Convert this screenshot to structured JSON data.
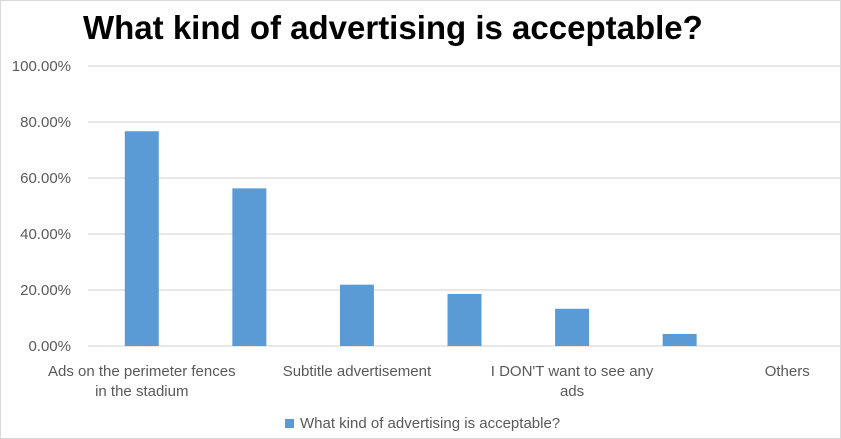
{
  "chart_data": {
    "type": "bar",
    "title": "What kind of advertising is acceptable?",
    "categories": [
      "Ads on the perimeter fences\nin the stadium",
      "",
      "Subtitle advertisement",
      "",
      "I DON'T want to see any ads",
      "",
      "Others"
    ],
    "series": [
      {
        "name": "What kind of advertising is acceptable?",
        "values": [
          76.7,
          56.3,
          21.9,
          18.6,
          13.3,
          4.3,
          0
        ],
        "color": "#5b9bd5"
      }
    ],
    "ylim": [
      0,
      100
    ],
    "yticks": [
      "0.00%",
      "20.00%",
      "40.00%",
      "60.00%",
      "80.00%",
      "100.00%"
    ],
    "grid": true,
    "legend": "bottom"
  }
}
